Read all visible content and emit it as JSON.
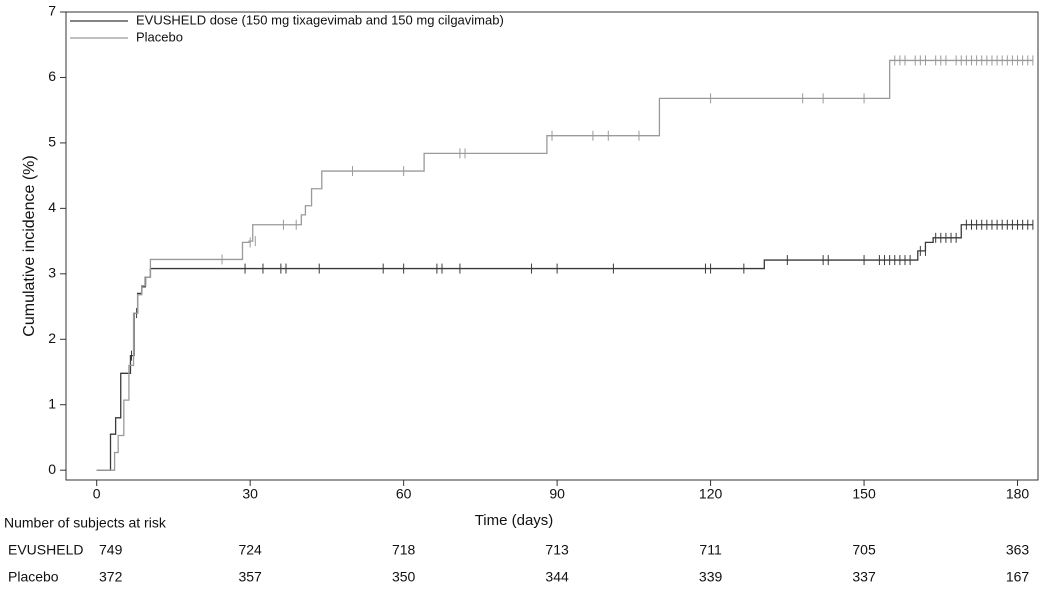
{
  "chart_data": {
    "type": "step",
    "ylabel": "Cumulative incidence (%)",
    "xlabel": "Time (days)",
    "xlim": [
      -6,
      184
    ],
    "ylim": [
      -0.15,
      7.0
    ],
    "xticks": [
      0,
      30,
      60,
      90,
      120,
      150,
      180
    ],
    "yticks": [
      0,
      1,
      2,
      3,
      4,
      5,
      6,
      7
    ],
    "legend": "top-left",
    "series": [
      {
        "name": "EVUSHELD dose (150 mg tixagevimab and 150 mg cilgavimab)",
        "color": "#3a3a3a",
        "x": [
          0,
          2.7,
          3.7,
          4.7,
          6.6,
          7.3,
          8,
          8.8,
          9.5,
          10.5,
          130.5,
          160.5,
          162,
          163.5,
          169,
          183
        ],
        "values": [
          0,
          0.55,
          0.8,
          1.48,
          1.75,
          2.4,
          2.7,
          2.8,
          2.95,
          3.08,
          3.21,
          3.35,
          3.48,
          3.55,
          3.75,
          3.75
        ],
        "censor_x": [
          6.8,
          7.8,
          29,
          32.5,
          36,
          37,
          43.5,
          56,
          60,
          66.5,
          67.5,
          71,
          85,
          90,
          101,
          119,
          120,
          126.5,
          135,
          142,
          143,
          150,
          153,
          154,
          155,
          156,
          157,
          158,
          159,
          161,
          162,
          164,
          165,
          166,
          167,
          168,
          170,
          171,
          172,
          173,
          174,
          175,
          176,
          177,
          178,
          179,
          180,
          181,
          182,
          183
        ],
        "censor_values": [
          1.75,
          2.4,
          3.08,
          3.08,
          3.08,
          3.08,
          3.08,
          3.08,
          3.08,
          3.08,
          3.08,
          3.08,
          3.08,
          3.08,
          3.08,
          3.08,
          3.08,
          3.08,
          3.21,
          3.21,
          3.21,
          3.21,
          3.21,
          3.21,
          3.21,
          3.21,
          3.21,
          3.21,
          3.21,
          3.35,
          3.35,
          3.55,
          3.55,
          3.55,
          3.55,
          3.55,
          3.75,
          3.75,
          3.75,
          3.75,
          3.75,
          3.75,
          3.75,
          3.75,
          3.75,
          3.75,
          3.75,
          3.75,
          3.75,
          3.75
        ]
      },
      {
        "name": "Placebo",
        "color": "#9a9a9a",
        "x": [
          0,
          3.5,
          4.2,
          5.3,
          6.3,
          7.2,
          8,
          8.8,
          9.6,
          10.5,
          28.5,
          29.8,
          30.5,
          40,
          40.8,
          42,
          44,
          64,
          88,
          110,
          155,
          183
        ],
        "values": [
          0,
          0.27,
          0.53,
          1.07,
          1.6,
          2.4,
          2.68,
          2.82,
          2.95,
          3.22,
          3.48,
          3.5,
          3.75,
          3.9,
          4.04,
          4.3,
          4.57,
          4.84,
          5.11,
          5.68,
          6.26,
          6.26
        ],
        "censor_x": [
          24.5,
          30,
          31,
          36.5,
          39,
          50,
          60,
          71,
          72,
          89,
          97,
          100,
          106,
          120,
          138,
          142,
          150,
          156,
          157,
          158,
          160,
          161,
          162,
          164,
          165,
          166,
          168,
          169,
          170,
          171,
          172,
          173,
          174,
          175,
          176,
          177,
          178,
          179,
          180,
          181,
          182,
          183
        ],
        "censor_values": [
          3.22,
          3.48,
          3.5,
          3.75,
          3.75,
          4.57,
          4.57,
          4.84,
          4.84,
          5.11,
          5.11,
          5.11,
          5.11,
          5.68,
          5.68,
          5.68,
          5.68,
          6.26,
          6.26,
          6.26,
          6.26,
          6.26,
          6.26,
          6.26,
          6.26,
          6.26,
          6.26,
          6.26,
          6.26,
          6.26,
          6.26,
          6.26,
          6.26,
          6.26,
          6.26,
          6.26,
          6.26,
          6.26,
          6.26,
          6.26,
          6.26,
          6.26
        ]
      }
    ],
    "risk_table": {
      "title": "Number of subjects at risk",
      "rows": [
        {
          "label": "EVUSHELD",
          "counts": [
            749,
            724,
            718,
            713,
            711,
            705,
            363
          ]
        },
        {
          "label": "Placebo",
          "counts": [
            372,
            357,
            350,
            344,
            339,
            337,
            167
          ]
        }
      ]
    }
  }
}
